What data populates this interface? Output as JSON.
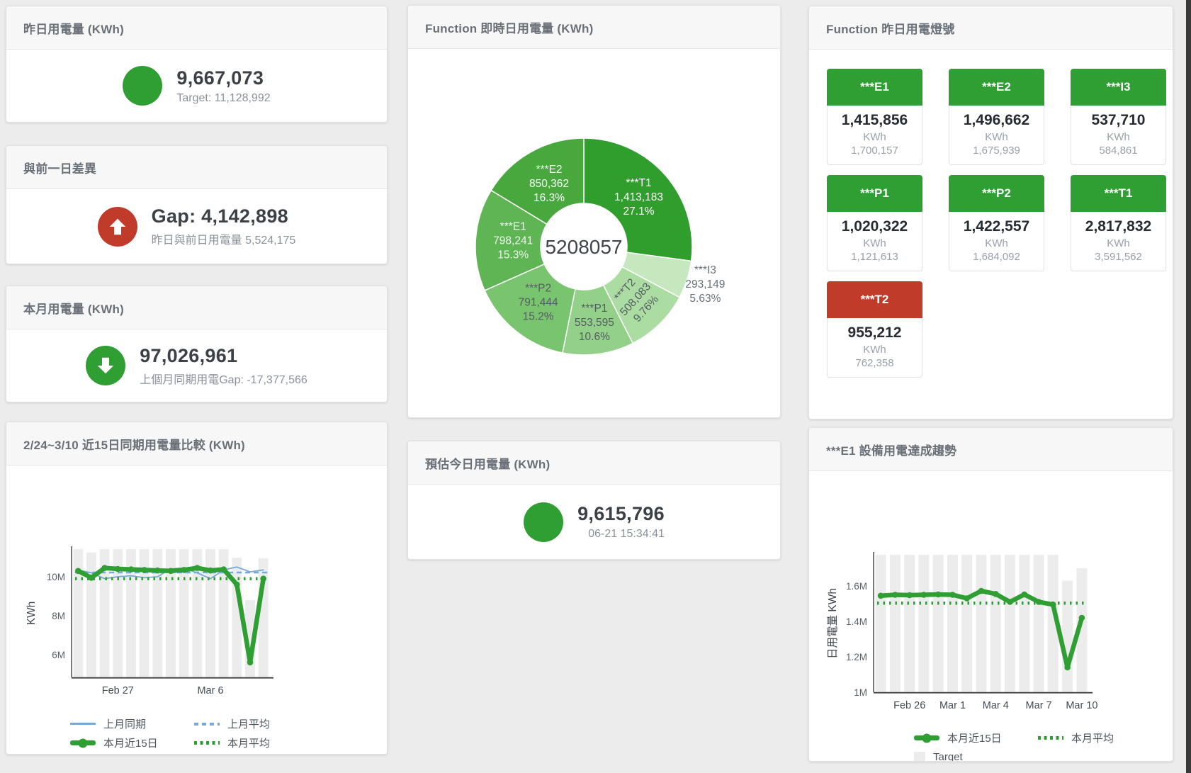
{
  "colors": {
    "green": "#2f9e33",
    "red": "#c13b2a",
    "blue": "#74a9d8",
    "target_bar": "#ececec"
  },
  "cards": {
    "yesterday": {
      "title": "昨日用電量 (KWh)",
      "value": "9,667,073",
      "subtitle": "Target: 11,128,992"
    },
    "day_gap": {
      "title": "與前一日差異",
      "value": "Gap: 4,142,898",
      "subtitle": "昨日與前日用電量 5,524,175"
    },
    "month": {
      "title": "本月用電量 (KWh)",
      "value": "97,026,961",
      "subtitle": "上個月同期用電Gap: -17,377,566"
    },
    "compare": {
      "title": "2/24~3/10 近15日同期用電量比較 (KWh)"
    },
    "realtime": {
      "title": "Function 即時日用電量 (KWh)"
    },
    "today_estimate": {
      "title": "預估今日用電量 (KWh)",
      "value": "9,615,796",
      "subtitle": "06-21 15:34:41"
    },
    "status_board": {
      "title": "Function 昨日用電燈號"
    },
    "e1_trend": {
      "title": "***E1 設備用電達成趨勢"
    }
  },
  "status_board": {
    "tiles": [
      {
        "label": "***E1",
        "value": "1,415,856",
        "unit": "KWh",
        "target": "1,700,157",
        "status": "green"
      },
      {
        "label": "***E2",
        "value": "1,496,662",
        "unit": "KWh",
        "target": "1,675,939",
        "status": "green"
      },
      {
        "label": "***I3",
        "value": "537,710",
        "unit": "KWh",
        "target": "584,861",
        "status": "green"
      },
      {
        "label": "***P1",
        "value": "1,020,322",
        "unit": "KWh",
        "target": "1,121,613",
        "status": "green"
      },
      {
        "label": "***P2",
        "value": "1,422,557",
        "unit": "KWh",
        "target": "1,684,092",
        "status": "green"
      },
      {
        "label": "***T1",
        "value": "2,817,832",
        "unit": "KWh",
        "target": "3,591,562",
        "status": "green"
      },
      {
        "label": "***T2",
        "value": "955,212",
        "unit": "KWh",
        "target": "762,358",
        "status": "red"
      }
    ]
  },
  "chart_data": [
    {
      "id": "realtime-donut",
      "type": "pie",
      "title": "Function 即時日用電量 (KWh)",
      "center_label": "5208057",
      "slices": [
        {
          "name": "***T1",
          "value": 1413183,
          "value_label": "1,413,183",
          "pct": "27.1%",
          "share": 27.1,
          "color": "#2f9e2d",
          "label_color": "#ffffff",
          "label_r": 103
        },
        {
          "name": "***I3",
          "value": 293149,
          "value_label": "293,149",
          "pct": "5.63%",
          "share": 5.63,
          "color": "#c5e8bf",
          "label_color": "#6a7077",
          "label_r": 180
        },
        {
          "name": "***T2",
          "value": 508083,
          "value_label": "508,083",
          "pct": "9.76%",
          "share": 9.76,
          "color": "#abdca2",
          "label_color": "#555c63",
          "label_r": 106,
          "rotate": -48
        },
        {
          "name": "***P1",
          "value": 553595,
          "value_label": "553,595",
          "pct": "10.6%",
          "share": 10.6,
          "color": "#93d089",
          "label_color": "#555c63",
          "label_r": 110
        },
        {
          "name": "***P2",
          "value": 791444,
          "value_label": "791,444",
          "pct": "15.2%",
          "share": 15.2,
          "color": "#79c46e",
          "label_color": "#555c63",
          "label_r": 103
        },
        {
          "name": "***E1",
          "value": 798241,
          "value_label": "798,241",
          "pct": "15.3%",
          "share": 15.3,
          "color": "#5fb554",
          "label_color": "#eef3ee",
          "label_r": 100
        },
        {
          "name": "***E2",
          "value": 850362,
          "value_label": "850,362",
          "pct": "16.3%",
          "share": 16.3,
          "color": "#48a83e",
          "label_color": "#ffffff",
          "label_r": 100
        }
      ]
    },
    {
      "id": "compare15",
      "type": "line",
      "title": "2/24~3/10 近15日同期用電量比較 (KWh)",
      "ylabel": "KWh",
      "ylim": [
        4830000,
        11420000
      ],
      "yticks": [
        {
          "value": 6000000,
          "label": "6M"
        },
        {
          "value": 8000000,
          "label": "8M"
        },
        {
          "value": 10000000,
          "label": "10M"
        }
      ],
      "xticks": [
        {
          "index": 3,
          "label": "Feb 27"
        },
        {
          "index": 10,
          "label": "Mar 6"
        }
      ],
      "target_bars": {
        "name": "Target",
        "values": [
          11420000,
          11250000,
          11420000,
          11420000,
          11420000,
          11420000,
          11420000,
          11420000,
          11420000,
          11420000,
          11420000,
          11420000,
          10980000,
          8800000,
          10950000
        ]
      },
      "series": [
        {
          "name": "上月同期",
          "style": "line",
          "color": "#74a9d8",
          "values": [
            10350000,
            10200000,
            9900000,
            10000000,
            10050000,
            9950000,
            10000000,
            10400000,
            10450000,
            10200000,
            9900000,
            10350000,
            10500000,
            10250000,
            10350000
          ]
        },
        {
          "name": "上月平均",
          "style": "dashed",
          "color": "#74a9d8",
          "values": 10220000
        },
        {
          "name": "本月近15日",
          "style": "thick",
          "color": "#2f9e33",
          "values": [
            10300000,
            9950000,
            10450000,
            10400000,
            10380000,
            10350000,
            10320000,
            10300000,
            10350000,
            10450000,
            10320000,
            10380000,
            9600000,
            5600000,
            9900000
          ]
        },
        {
          "name": "本月平均",
          "style": "dotted",
          "color": "#2f9e33",
          "values": 9900000
        }
      ],
      "legend": [
        {
          "label": "上月同期",
          "marker": "line",
          "color": "#74a9d8"
        },
        {
          "label": "上月平均",
          "marker": "dashed",
          "color": "#74a9d8"
        },
        {
          "label": "本月近15日",
          "marker": "thick",
          "color": "#2f9e33"
        },
        {
          "label": "本月平均",
          "marker": "dotted",
          "color": "#2f9e33"
        },
        {
          "label": "Target",
          "marker": "box",
          "color": "#ececec"
        }
      ]
    },
    {
      "id": "e1-trend",
      "type": "line",
      "title": "***E1 設備用電達成趨勢",
      "ylabel": "日用電量 KWh",
      "ylim": [
        1000000,
        1776000
      ],
      "yticks": [
        {
          "value": 1000000,
          "label": "1M"
        },
        {
          "value": 1200000,
          "label": "1.2M"
        },
        {
          "value": 1400000,
          "label": "1.4M"
        },
        {
          "value": 1600000,
          "label": "1.6M"
        }
      ],
      "xticks": [
        {
          "index": 2,
          "label": "Feb 26"
        },
        {
          "index": 5,
          "label": "Mar 1"
        },
        {
          "index": 8,
          "label": "Mar 4"
        },
        {
          "index": 11,
          "label": "Mar 7"
        },
        {
          "index": 14,
          "label": "Mar 10"
        }
      ],
      "target_bars": {
        "name": "Target",
        "values": [
          1776000,
          1776000,
          1776000,
          1776000,
          1776000,
          1776000,
          1776000,
          1776000,
          1776000,
          1776000,
          1776000,
          1776000,
          1776000,
          1630000,
          1700000
        ]
      },
      "series": [
        {
          "name": "本月近15日",
          "style": "thick",
          "color": "#2f9e33",
          "values": [
            1545000,
            1550000,
            1548000,
            1550000,
            1552000,
            1550000,
            1530000,
            1572000,
            1555000,
            1510000,
            1552000,
            1510000,
            1495000,
            1140000,
            1420000
          ]
        },
        {
          "name": "本月平均",
          "style": "dotted",
          "color": "#2f9e33",
          "values": 1503000
        }
      ],
      "legend": [
        {
          "label": "本月近15日",
          "marker": "thick",
          "color": "#2f9e33"
        },
        {
          "label": "本月平均",
          "marker": "dotted",
          "color": "#2f9e33"
        },
        {
          "label": "Target",
          "marker": "box",
          "color": "#ececec"
        }
      ]
    }
  ]
}
